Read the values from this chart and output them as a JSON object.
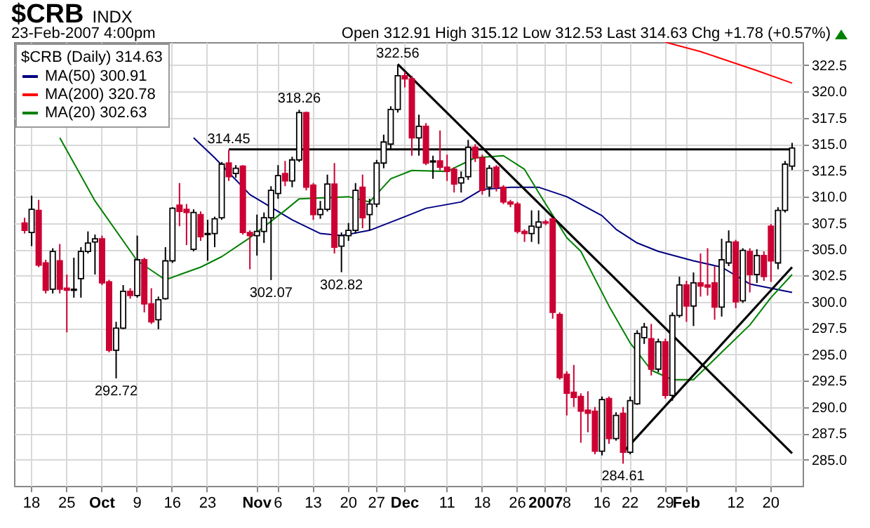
{
  "chart_data": {
    "type": "candlestick",
    "title": "$CRB",
    "subtitle": "23-Feb-2007 4:00pm",
    "annotations": [
      "INDX",
      "Open 312.91  High 315.12  Low 312.53  Last 314.63  Chg +1.78 (+0.57%)",
      {
        "text": "314.45",
        "y": 314.45
      },
      {
        "text": "318.26",
        "y": 318.26
      },
      {
        "text": "322.56",
        "y": 322.56
      },
      {
        "text": "292.72",
        "y": 292.72
      },
      {
        "text": "302.07",
        "y": 302.07
      },
      {
        "text": "302.82",
        "y": 302.82
      },
      {
        "text": "284.61",
        "y": 284.61
      }
    ],
    "categories": [
      null,
      "18",
      null,
      null,
      null,
      null,
      "25",
      null,
      null,
      null,
      null,
      "Oct",
      null,
      null,
      null,
      null,
      "9",
      null,
      null,
      null,
      null,
      "16",
      null,
      null,
      null,
      null,
      "23",
      null,
      null,
      null,
      null,
      null,
      null,
      "Nov",
      null,
      null,
      "6",
      null,
      null,
      null,
      null,
      "13",
      null,
      null,
      null,
      null,
      "20",
      null,
      null,
      null,
      "27",
      null,
      null,
      null,
      "Dec",
      null,
      null,
      null,
      null,
      null,
      "11",
      null,
      null,
      null,
      null,
      "18",
      null,
      null,
      null,
      null,
      "26",
      null,
      null,
      null,
      "2007",
      null,
      null,
      "8",
      null,
      null,
      null,
      null,
      "16",
      null,
      null,
      null,
      "22",
      null,
      null,
      null,
      null,
      "29",
      null,
      null,
      "Feb",
      null,
      null,
      null,
      null,
      null,
      null,
      "12",
      null,
      null,
      null,
      null,
      "20",
      null,
      null,
      null
    ],
    "ohlc": [
      [
        307.5,
        308.0,
        306.5,
        306.8
      ],
      [
        306.6,
        310.1,
        305.3,
        308.8
      ],
      [
        308.7,
        309.7,
        303.3,
        303.5
      ],
      [
        303.7,
        304.0,
        300.8,
        301.1
      ],
      [
        301.2,
        305.1,
        300.8,
        304.8
      ],
      [
        303.9,
        305.5,
        300.8,
        301.2
      ],
      [
        301.3,
        302.6,
        297.1,
        301.1
      ],
      [
        301.1,
        304.2,
        300.4,
        301.2
      ],
      [
        302.2,
        305.2,
        300.4,
        304.8
      ],
      [
        304.8,
        306.7,
        304.6,
        305.6
      ],
      [
        305.7,
        306.4,
        302.6,
        306.0
      ],
      [
        306.0,
        306.3,
        301.6,
        301.8
      ],
      [
        301.9,
        302.1,
        295.2,
        295.4
      ],
      [
        295.4,
        298.1,
        292.72,
        297.5
      ],
      [
        297.5,
        301.6,
        297.4,
        301.0
      ],
      [
        301.0,
        301.3,
        300.3,
        300.6
      ],
      [
        300.6,
        306.3,
        300.4,
        304.0
      ],
      [
        304.0,
        304.2,
        299.0,
        299.8
      ],
      [
        299.8,
        301.3,
        297.9,
        298.1
      ],
      [
        298.3,
        300.5,
        297.4,
        300.2
      ],
      [
        300.3,
        305.2,
        300.2,
        303.9
      ],
      [
        303.9,
        309.0,
        303.7,
        308.9
      ],
      [
        309.2,
        311.3,
        307.2,
        308.6
      ],
      [
        308.8,
        309.3,
        305.4,
        308.5
      ],
      [
        305.0,
        308.8,
        304.8,
        308.5
      ],
      [
        308.3,
        308.6,
        305.8,
        306.2
      ],
      [
        306.4,
        307.8,
        303.9,
        306.5
      ],
      [
        306.5,
        308.1,
        305.2,
        307.9
      ],
      [
        308.0,
        313.3,
        307.8,
        313.1
      ],
      [
        313.2,
        314.45,
        311.5,
        311.9
      ],
      [
        312.2,
        313.0,
        311.8,
        312.7
      ],
      [
        312.9,
        313.0,
        306.4,
        306.6
      ],
      [
        306.6,
        306.8,
        303.1,
        306.3
      ],
      [
        306.3,
        308.3,
        304.4,
        306.7
      ],
      [
        306.7,
        308.5,
        305.6,
        308.0
      ],
      [
        308.0,
        311.0,
        302.07,
        310.6
      ],
      [
        310.3,
        313.0,
        309.8,
        312.0
      ],
      [
        312.2,
        313.4,
        311.0,
        311.5
      ],
      [
        311.5,
        313.8,
        310.9,
        313.5
      ],
      [
        313.5,
        318.26,
        313.3,
        318.0
      ],
      [
        318.0,
        318.1,
        310.6,
        310.9
      ],
      [
        311.1,
        311.3,
        307.8,
        308.3
      ],
      [
        308.3,
        309.6,
        307.9,
        308.8
      ],
      [
        308.8,
        312.1,
        308.6,
        311.2
      ],
      [
        311.2,
        313.2,
        304.6,
        305.2
      ],
      [
        305.3,
        306.6,
        302.82,
        306.3
      ],
      [
        306.3,
        307.5,
        305.8,
        306.8
      ],
      [
        306.8,
        311.3,
        306.5,
        310.6
      ],
      [
        310.9,
        312.1,
        307.0,
        308.0
      ],
      [
        308.3,
        309.8,
        306.8,
        309.3
      ],
      [
        309.3,
        313.5,
        309.0,
        313.2
      ],
      [
        313.2,
        315.9,
        312.7,
        315.2
      ],
      [
        315.0,
        318.6,
        314.5,
        318.3
      ],
      [
        318.3,
        322.56,
        318.0,
        321.5
      ],
      [
        321.5,
        321.9,
        320.4,
        321.2
      ],
      [
        321.2,
        321.5,
        313.9,
        315.6
      ],
      [
        315.6,
        317.8,
        313.9,
        316.7
      ],
      [
        316.7,
        317.0,
        313.0,
        313.2
      ],
      [
        313.3,
        313.9,
        311.7,
        313.4
      ],
      [
        313.4,
        316.3,
        312.5,
        312.8
      ],
      [
        312.8,
        314.0,
        311.5,
        312.4
      ],
      [
        312.6,
        312.8,
        310.4,
        311.2
      ],
      [
        311.3,
        312.4,
        310.4,
        311.8
      ],
      [
        311.9,
        315.4,
        311.6,
        314.7
      ],
      [
        314.7,
        315.0,
        313.3,
        313.7
      ],
      [
        313.7,
        314.0,
        310.2,
        310.6
      ],
      [
        310.9,
        313.0,
        310.0,
        312.7
      ],
      [
        312.8,
        313.0,
        310.5,
        310.9
      ],
      [
        310.9,
        311.1,
        309.3,
        309.5
      ],
      [
        309.5,
        309.7,
        309.0,
        309.3
      ],
      [
        309.3,
        309.5,
        306.5,
        306.7
      ],
      [
        306.7,
        306.9,
        305.7,
        306.5
      ],
      [
        306.5,
        308.7,
        305.7,
        307.2
      ],
      [
        307.1,
        308.7,
        305.5,
        307.6
      ],
      [
        307.6,
        307.8,
        307.3,
        307.5
      ],
      [
        307.9,
        308.0,
        298.4,
        299.0
      ],
      [
        298.8,
        299.0,
        292.6,
        292.8
      ],
      [
        293.1,
        293.4,
        289.2,
        291.3
      ],
      [
        291.4,
        294.0,
        290.0,
        290.9
      ],
      [
        291.0,
        291.3,
        286.6,
        289.6
      ],
      [
        289.7,
        291.5,
        287.6,
        289.4
      ],
      [
        289.6,
        290.0,
        285.5,
        285.8
      ],
      [
        285.8,
        291.0,
        285.4,
        290.7
      ],
      [
        290.8,
        291.0,
        286.5,
        287.0
      ],
      [
        287.0,
        289.5,
        286.8,
        289.2
      ],
      [
        289.4,
        290.0,
        284.61,
        285.7
      ],
      [
        285.7,
        291.0,
        285.5,
        290.6
      ],
      [
        290.3,
        297.3,
        290.2,
        297.0
      ],
      [
        296.6,
        298.0,
        296.0,
        297.6
      ],
      [
        296.5,
        297.9,
        293.0,
        293.6
      ],
      [
        293.6,
        296.5,
        293.3,
        296.2
      ],
      [
        296.2,
        296.5,
        290.8,
        291.1
      ],
      [
        291.1,
        299.0,
        290.6,
        298.7
      ],
      [
        298.7,
        302.4,
        298.5,
        301.6
      ],
      [
        301.6,
        302.0,
        298.1,
        299.6
      ],
      [
        299.6,
        302.8,
        297.7,
        301.8
      ],
      [
        301.8,
        304.6,
        300.5,
        301.5
      ],
      [
        301.6,
        305.1,
        300.6,
        301.4
      ],
      [
        301.8,
        303.4,
        298.3,
        299.5
      ],
      [
        299.5,
        306.0,
        298.6,
        304.0
      ],
      [
        303.7,
        306.8,
        303.4,
        305.7
      ],
      [
        305.7,
        305.9,
        299.4,
        300.0
      ],
      [
        300.1,
        305.1,
        299.9,
        304.9
      ],
      [
        304.8,
        305.1,
        300.9,
        302.6
      ],
      [
        302.6,
        305.0,
        301.8,
        304.4
      ],
      [
        304.4,
        304.8,
        302.0,
        302.4
      ],
      [
        307.2,
        307.4,
        301.9,
        303.9
      ],
      [
        303.7,
        309.0,
        303.1,
        308.7
      ],
      [
        308.7,
        313.4,
        308.5,
        313.1
      ],
      [
        312.91,
        315.12,
        312.53,
        314.63
      ]
    ],
    "colors": [
      "#cc0033",
      "#000000",
      "#cc0033",
      "#cc0033",
      "#000000",
      "#cc0033",
      "#cc0033",
      "#000000",
      "#000000",
      "#000000",
      "#000000",
      "#cc0033",
      "#cc0033",
      "#000000",
      "#000000",
      "#cc0033",
      "#000000",
      "#cc0033",
      "#cc0033",
      "#000000",
      "#000000",
      "#000000",
      "#cc0033",
      "#cc0033",
      "#000000",
      "#cc0033",
      "#000000",
      "#000000",
      "#000000",
      "#cc0033",
      "#000000",
      "#cc0033",
      "#cc0033",
      "#000000",
      "#000000",
      "#000000",
      "#000000",
      "#cc0033",
      "#000000",
      "#000000",
      "#cc0033",
      "#cc0033",
      "#000000",
      "#000000",
      "#cc0033",
      "#000000",
      "#000000",
      "#000000",
      "#cc0033",
      "#000000",
      "#000000",
      "#000000",
      "#000000",
      "#000000",
      "#cc0033",
      "#cc0033",
      "#000000",
      "#cc0033",
      "#000000",
      "#cc0033",
      "#cc0033",
      "#cc0033",
      "#000000",
      "#000000",
      "#cc0033",
      "#cc0033",
      "#000000",
      "#cc0033",
      "#cc0033",
      "#cc0033",
      "#cc0033",
      "#cc0033",
      "#000000",
      "#000000",
      "#cc0033",
      "#cc0033",
      "#cc0033",
      "#cc0033",
      "#cc0033",
      "#cc0033",
      "#cc0033",
      "#cc0033",
      "#000000",
      "#cc0033",
      "#000000",
      "#cc0033",
      "#000000",
      "#000000",
      "#000000",
      "#cc0033",
      "#000000",
      "#cc0033",
      "#000000",
      "#000000",
      "#cc0033",
      "#000000",
      "#cc0033",
      "#cc0033",
      "#cc0033",
      "#000000",
      "#000000",
      "#cc0033",
      "#000000",
      "#cc0033",
      "#000000",
      "#cc0033",
      "#cc0033",
      "#000000",
      "#000000",
      "#000000"
    ],
    "series": [
      {
        "name": "MA(50) 300.91",
        "type": "line",
        "color": "#000080",
        "values": [
          null,
          null,
          null,
          null,
          null,
          null,
          null,
          null,
          null,
          null,
          null,
          null,
          null,
          null,
          null,
          null,
          null,
          null,
          null,
          null,
          null,
          null,
          null,
          null,
          315.6,
          null,
          null,
          313.7,
          null,
          null,
          null,
          null,
          310.2,
          null,
          null,
          null,
          null,
          null,
          307.8,
          null,
          null,
          null,
          306.5,
          null,
          null,
          306.3,
          null,
          null,
          null,
          306.8,
          null,
          null,
          null,
          null,
          308.1,
          null,
          null,
          308.9,
          null,
          null,
          null,
          null,
          309.5,
          null,
          null,
          310.7,
          null,
          null,
          null,
          310.9,
          null,
          null,
          null,
          310.9,
          null,
          null,
          null,
          310.0,
          null,
          null,
          null,
          null,
          308.2,
          null,
          306.9,
          null,
          null,
          305.6,
          null,
          null,
          304.8,
          null,
          null,
          null,
          null,
          303.9,
          null,
          null,
          null,
          303.3,
          null,
          null,
          null,
          301.7,
          null,
          null,
          null,
          null,
          null,
          300.9
        ]
      },
      {
        "name": "MA(200) 320.78",
        "type": "line",
        "color": "#ff0000",
        "values": [
          null,
          null,
          null,
          null,
          null,
          null,
          null,
          null,
          null,
          null,
          null,
          null,
          null,
          null,
          null,
          null,
          null,
          null,
          null,
          null,
          null,
          null,
          null,
          null,
          null,
          null,
          null,
          null,
          null,
          null,
          null,
          null,
          null,
          null,
          null,
          null,
          null,
          null,
          null,
          null,
          null,
          null,
          null,
          null,
          null,
          null,
          null,
          null,
          null,
          null,
          null,
          null,
          null,
          null,
          null,
          null,
          null,
          null,
          null,
          null,
          null,
          null,
          null,
          null,
          null,
          null,
          null,
          null,
          null,
          null,
          null,
          null,
          null,
          null,
          null,
          null,
          null,
          null,
          null,
          null,
          null,
          null,
          null,
          null,
          null,
          null,
          null,
          null,
          null,
          null,
          null,
          324.7,
          null,
          null,
          null,
          null,
          323.8,
          null,
          null,
          null,
          322.9,
          null,
          null,
          null,
          322.0,
          null,
          null,
          null,
          null,
          320.8
        ]
      },
      {
        "name": "MA(20) 302.63",
        "type": "line",
        "color": "#008000",
        "values": [
          null,
          null,
          null,
          null,
          null,
          315.6,
          null,
          null,
          null,
          null,
          309.6,
          null,
          null,
          null,
          null,
          null,
          303.9,
          null,
          null,
          null,
          302.1,
          null,
          null,
          null,
          null,
          303.3,
          null,
          null,
          304.3,
          null,
          null,
          null,
          306.1,
          null,
          null,
          null,
          null,
          308.7,
          null,
          309.8,
          null,
          null,
          null,
          null,
          null,
          null,
          310.0,
          null,
          null,
          309.5,
          null,
          null,
          311.7,
          null,
          null,
          312.5,
          null,
          null,
          null,
          null,
          312.4,
          null,
          null,
          null,
          313.7,
          null,
          null,
          null,
          313.9,
          null,
          null,
          312.6,
          null,
          310.4,
          null,
          null,
          null,
          306.1,
          null,
          304.8,
          null,
          null,
          null,
          299.6,
          null,
          null,
          296.1,
          null,
          null,
          293.5,
          null,
          null,
          292.6,
          null,
          null,
          292.6,
          null,
          null,
          null,
          295.2,
          null,
          null,
          null,
          297.8,
          null,
          null,
          300.4,
          null,
          null,
          302.6
        ]
      },
      {
        "type": "line",
        "color": "#000000",
        "values": [
          null,
          null,
          null,
          null,
          null,
          null,
          null,
          null,
          null,
          null,
          null,
          null,
          null,
          null,
          null,
          null,
          null,
          null,
          null,
          null,
          null,
          null,
          null,
          null,
          null,
          null,
          null,
          null,
          null,
          314.5,
          null,
          null,
          null,
          null,
          null,
          null,
          null,
          null,
          null,
          null,
          null,
          null,
          null,
          null,
          null,
          null,
          null,
          null,
          null,
          null,
          null,
          null,
          null,
          null,
          null,
          null,
          null,
          null,
          null,
          null,
          null,
          null,
          null,
          null,
          null,
          null,
          null,
          null,
          null,
          null,
          null,
          null,
          null,
          null,
          null,
          null,
          null,
          null,
          null,
          null,
          null,
          null,
          null,
          null,
          null,
          null,
          null,
          null,
          null,
          null,
          null,
          null,
          null,
          null,
          null,
          null,
          null,
          null,
          null,
          null,
          null,
          null,
          null,
          null,
          null,
          null,
          null,
          null,
          null,
          314.5
        ]
      },
      {
        "type": "line",
        "color": "#000000",
        "values": [
          null,
          null,
          null,
          null,
          null,
          null,
          null,
          null,
          null,
          null,
          null,
          null,
          null,
          null,
          null,
          null,
          null,
          null,
          null,
          null,
          null,
          null,
          null,
          null,
          null,
          null,
          null,
          null,
          null,
          null,
          null,
          null,
          null,
          null,
          null,
          null,
          null,
          null,
          null,
          null,
          null,
          null,
          null,
          null,
          null,
          null,
          null,
          null,
          null,
          null,
          null,
          null,
          null,
          322.6,
          null,
          null,
          null,
          null,
          null,
          null,
          null,
          null,
          null,
          null,
          null,
          null,
          null,
          null,
          null,
          null,
          null,
          null,
          null,
          null,
          null,
          null,
          null,
          null,
          null,
          null,
          null,
          null,
          null,
          null,
          null,
          null,
          null,
          null,
          null,
          null,
          null,
          null,
          null,
          null,
          null,
          null,
          null,
          null,
          null,
          null,
          null,
          null,
          null,
          null,
          null,
          null,
          null,
          null,
          null,
          285.6
        ]
      },
      {
        "type": "line",
        "color": "#000000",
        "values": [
          null,
          null,
          null,
          null,
          null,
          null,
          null,
          null,
          null,
          null,
          null,
          null,
          null,
          null,
          null,
          null,
          null,
          null,
          null,
          null,
          null,
          null,
          null,
          null,
          null,
          null,
          null,
          null,
          null,
          null,
          null,
          null,
          null,
          null,
          null,
          null,
          null,
          null,
          null,
          null,
          null,
          null,
          null,
          null,
          null,
          null,
          null,
          null,
          null,
          null,
          null,
          null,
          null,
          null,
          null,
          null,
          null,
          null,
          null,
          null,
          null,
          null,
          null,
          null,
          null,
          null,
          null,
          null,
          null,
          null,
          null,
          null,
          null,
          null,
          null,
          null,
          null,
          null,
          null,
          null,
          null,
          null,
          null,
          null,
          null,
          285.7,
          null,
          null,
          null,
          null,
          null,
          null,
          null,
          null,
          null,
          null,
          null,
          null,
          null,
          null,
          null,
          null,
          null,
          null,
          null,
          null,
          null,
          null,
          null,
          303.3
        ]
      }
    ],
    "ylim": [
      282.5,
      324.7
    ],
    "yticks": [
      {
        "value": 285,
        "label": "285.0"
      },
      {
        "value": 287.5,
        "label": "287.5"
      },
      {
        "value": 290,
        "label": "290.0"
      },
      {
        "value": 292.5,
        "label": "292.5"
      },
      {
        "value": 295,
        "label": "295.0"
      },
      {
        "value": 297.5,
        "label": "297.5"
      },
      {
        "value": 300,
        "label": "300.0"
      },
      {
        "value": 302.5,
        "label": "302.5"
      },
      {
        "value": 305,
        "label": "305.0"
      },
      {
        "value": 307.5,
        "label": "307.5"
      },
      {
        "value": 310,
        "label": "310.0"
      },
      {
        "value": 312.5,
        "label": "312.5"
      },
      {
        "value": 315,
        "label": "315.0"
      },
      {
        "value": 317.5,
        "label": "317.5"
      },
      {
        "value": 320,
        "label": "320.0"
      },
      {
        "value": 322.5,
        "label": "322.5"
      }
    ],
    "grid": true,
    "legend": "top left",
    "legend_title": "$CRB (Daily) 314.63"
  }
}
